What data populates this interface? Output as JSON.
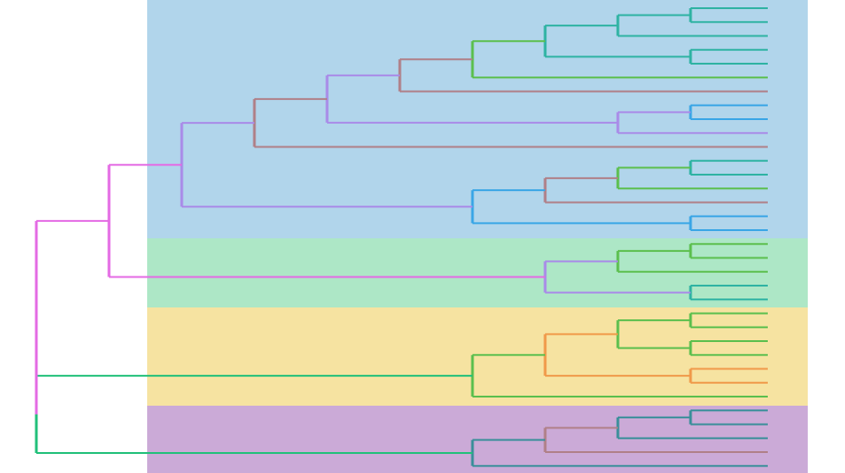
{
  "bands": [
    {
      "color": "#b1d5eb"
    },
    {
      "color": "#ade7c6"
    },
    {
      "color": "#f6e3a1"
    },
    {
      "color": "#cbaad7"
    }
  ]
}
